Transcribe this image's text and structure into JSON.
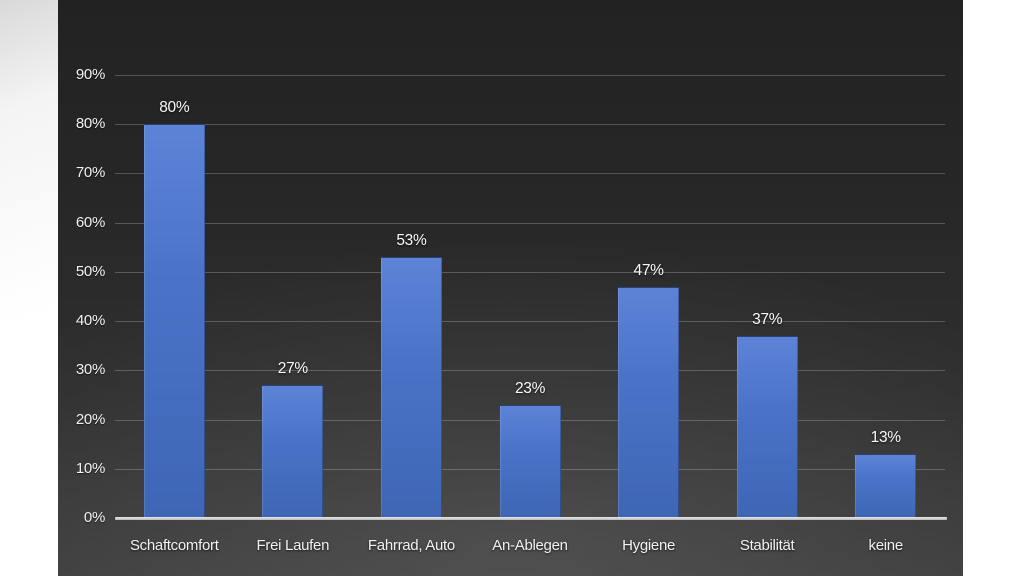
{
  "chart_data": {
    "type": "bar",
    "title": "",
    "xlabel": "",
    "ylabel": "",
    "categories": [
      "Schaftcomfort",
      "Frei Laufen",
      "Fahrrad, Auto",
      "An-Ablegen",
      "Hygiene",
      "Stabilität",
      "keine"
    ],
    "values": [
      80,
      27,
      53,
      23,
      47,
      37,
      13
    ],
    "value_labels": [
      "80%",
      "27%",
      "53%",
      "23%",
      "47%",
      "37%",
      "13%"
    ],
    "y_ticks": [
      {
        "value": 0,
        "label": "0%"
      },
      {
        "value": 10,
        "label": "10%"
      },
      {
        "value": 20,
        "label": "20%"
      },
      {
        "value": 30,
        "label": "30%"
      },
      {
        "value": 40,
        "label": "40%"
      },
      {
        "value": 50,
        "label": "50%"
      },
      {
        "value": 60,
        "label": "60%"
      },
      {
        "value": 70,
        "label": "70%"
      },
      {
        "value": 80,
        "label": "80%"
      },
      {
        "value": 90,
        "label": "90%"
      }
    ],
    "ylim": [
      0,
      90
    ],
    "grid": "horizontal",
    "legend": "none",
    "colors": {
      "bar": "#4472c4",
      "background_top": "#222222",
      "background_bottom": "#3d3d3d",
      "page": "#ffffff",
      "gridline": "rgba(255,255,255,0.22)",
      "axis_line": "#d9d9d9",
      "text": "#f2f2f2"
    }
  }
}
